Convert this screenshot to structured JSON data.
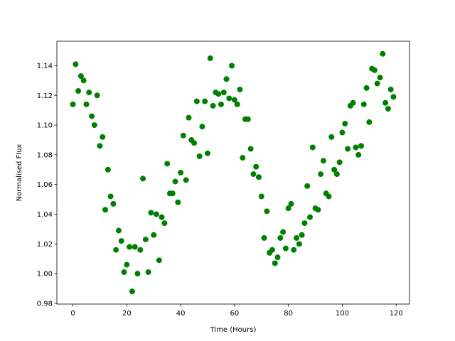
{
  "chart_data": {
    "type": "scatter",
    "xlabel": "Time (Hours)",
    "ylabel": "Normalised Flux",
    "series": [
      {
        "color": "#008000",
        "x": [
          0,
          1,
          2,
          3,
          4,
          5,
          6,
          7,
          8,
          9,
          10,
          11,
          12,
          13,
          14,
          15,
          16,
          17,
          18,
          19,
          20,
          21,
          22,
          23,
          24,
          25,
          26,
          27,
          28,
          29,
          30,
          31,
          32,
          33,
          34,
          35,
          36,
          37,
          38,
          39,
          40,
          41,
          42,
          43,
          44,
          45,
          46,
          47,
          48,
          49,
          50,
          51,
          52,
          53,
          54,
          55,
          56,
          57,
          58,
          59,
          60,
          61,
          62,
          63,
          64,
          65,
          66,
          67,
          68,
          69,
          70,
          71,
          72,
          73,
          74,
          75,
          76,
          77,
          78,
          79,
          80,
          81,
          82,
          83,
          84,
          85,
          86,
          87,
          88,
          89,
          90,
          91,
          92,
          93,
          94,
          95,
          96,
          97,
          98,
          99,
          100,
          101,
          102,
          103,
          104,
          105,
          106,
          107,
          108,
          109,
          110,
          111,
          112,
          113,
          114,
          115,
          116,
          117,
          118,
          119
        ],
        "values": [
          1.114,
          1.141,
          1.123,
          1.133,
          1.13,
          1.114,
          1.122,
          1.106,
          1.1,
          1.12,
          1.086,
          1.092,
          1.043,
          1.07,
          1.052,
          1.047,
          1.016,
          1.029,
          1.022,
          1.001,
          1.006,
          1.018,
          0.988,
          1.018,
          1.0,
          1.016,
          1.064,
          1.023,
          1.001,
          1.041,
          1.026,
          1.04,
          1.009,
          1.038,
          1.034,
          1.074,
          1.054,
          1.054,
          1.062,
          1.048,
          1.068,
          1.093,
          1.063,
          1.105,
          1.09,
          1.088,
          1.116,
          1.079,
          1.099,
          1.116,
          1.081,
          1.145,
          1.113,
          1.122,
          1.121,
          1.114,
          1.122,
          1.131,
          1.118,
          1.14,
          1.117,
          1.114,
          1.124,
          1.078,
          1.104,
          1.104,
          1.084,
          1.067,
          1.072,
          1.065,
          1.052,
          1.024,
          1.042,
          1.014,
          1.016,
          1.007,
          1.011,
          1.024,
          1.028,
          1.017,
          1.044,
          1.047,
          1.016,
          1.024,
          1.02,
          1.026,
          1.034,
          1.059,
          1.038,
          1.085,
          1.044,
          1.043,
          1.067,
          1.076,
          1.054,
          1.052,
          1.092,
          1.07,
          1.067,
          1.075,
          1.095,
          1.101,
          1.084,
          1.113,
          1.115,
          1.085,
          1.08,
          1.086,
          1.114,
          1.125,
          1.102,
          1.138,
          1.137,
          1.128,
          1.132,
          1.148,
          1.115,
          1.111,
          1.124,
          1.119
        ]
      }
    ],
    "xlim": [
      -5.95,
      124.95
    ],
    "xticks": [
      0,
      20,
      40,
      60,
      80,
      100,
      120
    ],
    "ylim": [
      0.9795,
      1.1565
    ],
    "yticks": [
      0.98,
      {
        "value": 1,
        "label": "1.00"
      },
      1.02,
      1.04,
      1.06,
      1.08,
      {
        "value": 1.1,
        "label": "1.10"
      },
      1.12,
      1.14
    ],
    "grid": false
  }
}
